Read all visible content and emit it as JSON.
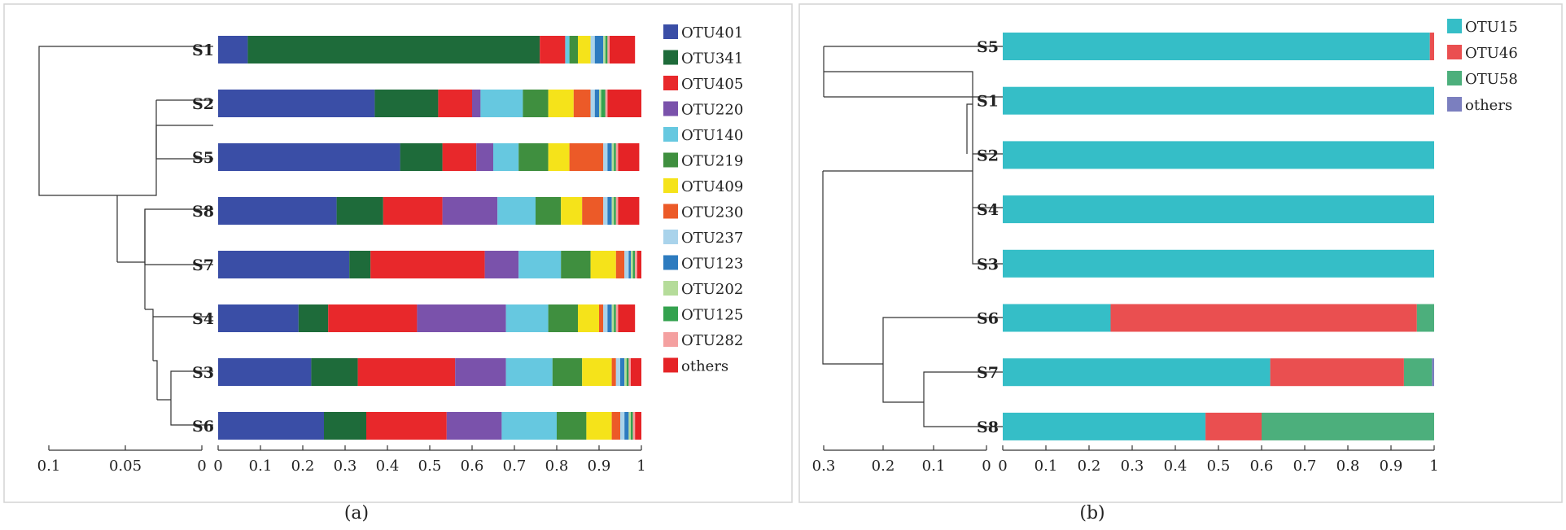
{
  "chart_data": [
    {
      "type": "bar",
      "orientation": "horizontal",
      "stacked": true,
      "caption": "(a)",
      "samples": [
        "S1",
        "S2",
        "S5",
        "S8",
        "S7",
        "S4",
        "S3",
        "S6"
      ],
      "xlim": [
        0,
        1
      ],
      "xticks": [
        "0",
        "0.1",
        "0.2",
        "0.3",
        "0.4",
        "0.5",
        "0.6",
        "0.7",
        "0.8",
        "0.9",
        "1"
      ],
      "dendrogram_ticks": [
        "0.1",
        "0.05",
        "0"
      ],
      "series": [
        {
          "name": "OTU401",
          "color": "#3a4ea6",
          "values": [
            0.07,
            0.37,
            0.43,
            0.28,
            0.31,
            0.19,
            0.22,
            0.25
          ]
        },
        {
          "name": "OTU341",
          "color": "#1e6b3a",
          "values": [
            0.69,
            0.15,
            0.1,
            0.11,
            0.05,
            0.07,
            0.11,
            0.1
          ]
        },
        {
          "name": "OTU405",
          "color": "#e8282b",
          "values": [
            0.06,
            0.08,
            0.08,
            0.14,
            0.27,
            0.21,
            0.23,
            0.19
          ]
        },
        {
          "name": "OTU220",
          "color": "#7a52ab",
          "values": [
            0,
            0.02,
            0.04,
            0.13,
            0.08,
            0.21,
            0.12,
            0.13
          ]
        },
        {
          "name": "OTU140",
          "color": "#66c8e0",
          "values": [
            0.01,
            0.1,
            0.06,
            0.09,
            0.1,
            0.1,
            0.11,
            0.13
          ]
        },
        {
          "name": "OTU219",
          "color": "#3f8f3f",
          "values": [
            0.02,
            0.06,
            0.07,
            0.06,
            0.07,
            0.07,
            0.07,
            0.07
          ]
        },
        {
          "name": "OTU409",
          "color": "#f5e31a",
          "values": [
            0.03,
            0.06,
            0.05,
            0.05,
            0.06,
            0.05,
            0.07,
            0.06
          ]
        },
        {
          "name": "OTU230",
          "color": "#ec5a28",
          "values": [
            0,
            0.04,
            0.08,
            0.05,
            0.02,
            0.01,
            0.01,
            0.02
          ]
        },
        {
          "name": "OTU237",
          "color": "#a9d3eb",
          "values": [
            0.01,
            0.01,
            0.01,
            0.01,
            0.01,
            0.01,
            0.01,
            0.01
          ]
        },
        {
          "name": "OTU123",
          "color": "#2d7bbf",
          "values": [
            0.02,
            0.01,
            0.01,
            0.01,
            0.005,
            0.01,
            0.01,
            0.01
          ]
        },
        {
          "name": "OTU202",
          "color": "#b5dc9a",
          "values": [
            0.005,
            0.005,
            0.005,
            0.005,
            0.005,
            0.005,
            0.005,
            0.005
          ]
        },
        {
          "name": "OTU125",
          "color": "#34a24f",
          "values": [
            0.005,
            0.01,
            0.005,
            0.005,
            0.005,
            0.005,
            0.005,
            0.005
          ]
        },
        {
          "name": "OTU282",
          "color": "#f4a0a0",
          "values": [
            0.005,
            0.005,
            0.005,
            0.005,
            0.005,
            0.005,
            0.005,
            0.005
          ]
        },
        {
          "name": "others",
          "color": "#e52326",
          "values": [
            0.06,
            0.09,
            0.05,
            0.05,
            0.02,
            0.04,
            0.04,
            0.03
          ]
        }
      ]
    },
    {
      "type": "bar",
      "orientation": "horizontal",
      "stacked": true,
      "caption": "(b)",
      "samples": [
        "S5",
        "S1",
        "S2",
        "S4",
        "S3",
        "S6",
        "S7",
        "S8"
      ],
      "xlim": [
        0,
        1
      ],
      "xticks": [
        "0",
        "0.1",
        "0.2",
        "0.3",
        "0.4",
        "0.5",
        "0.6",
        "0.7",
        "0.8",
        "0.9",
        "1"
      ],
      "dendrogram_ticks": [
        "0.3",
        "0.2",
        "0.1",
        "0"
      ],
      "series": [
        {
          "name": "OTU15",
          "color": "#35bec7",
          "values": [
            0.99,
            1.0,
            1.0,
            1.0,
            1.0,
            0.25,
            0.62,
            0.47
          ]
        },
        {
          "name": "OTU46",
          "color": "#ea4f50",
          "values": [
            0.01,
            0,
            0,
            0,
            0,
            0.71,
            0.31,
            0.13
          ]
        },
        {
          "name": "OTU58",
          "color": "#4caf7c",
          "values": [
            0,
            0,
            0,
            0,
            0,
            0.04,
            0.065,
            0.4
          ]
        },
        {
          "name": "others",
          "color": "#7b7fbf",
          "values": [
            0,
            0,
            0,
            0,
            0,
            0,
            0.005,
            0
          ]
        }
      ]
    }
  ]
}
